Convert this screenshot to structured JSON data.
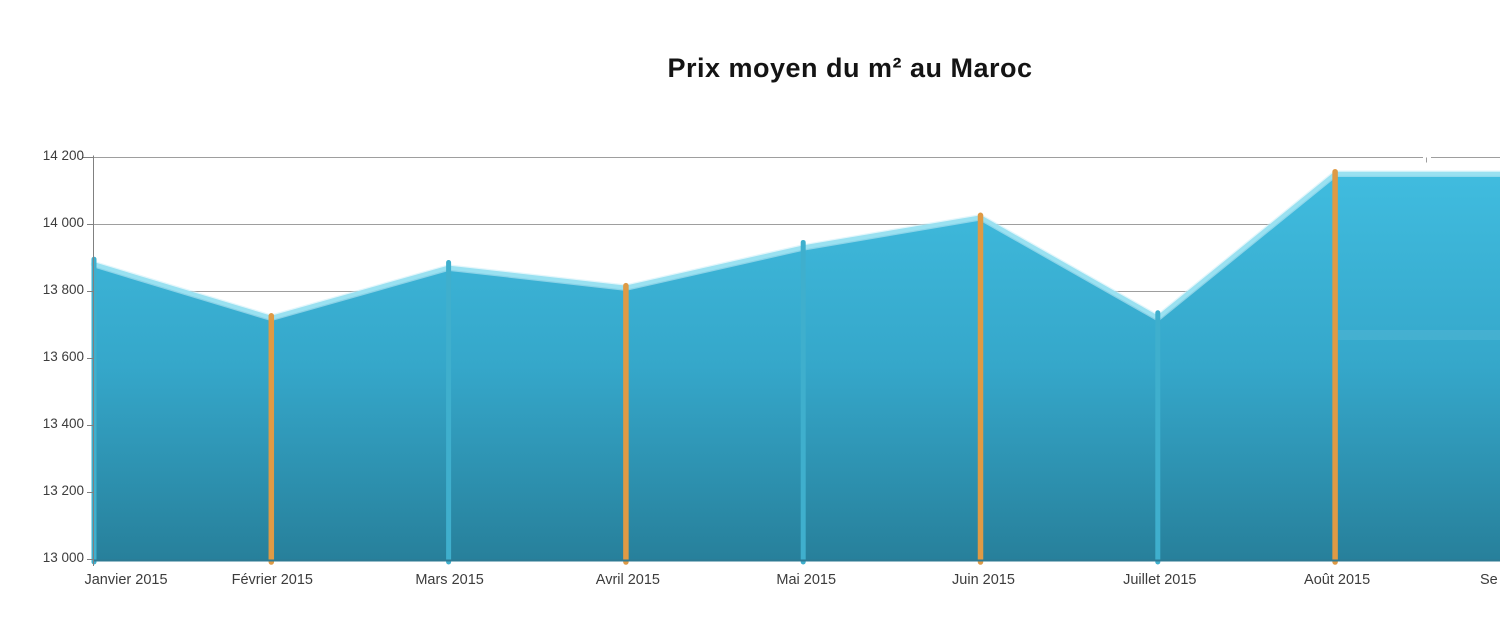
{
  "title": "Prix moyen du m² au Maroc",
  "chart_data": {
    "type": "area",
    "title": "Prix moyen du m² au Maroc",
    "categories": [
      "Janvier 2015",
      "Février 2015",
      "Mars 2015",
      "Avril 2015",
      "Mai 2015",
      "Juin 2015",
      "Juillet 2015",
      "Août 2015",
      "Se"
    ],
    "values": [
      13880,
      13720,
      13870,
      13810,
      13930,
      14020,
      13720,
      14150,
      14150
    ],
    "xlabel": "",
    "ylabel": "",
    "ylim": [
      13000,
      14200
    ],
    "ytick_step": 200,
    "ytick_labels": [
      "14 200",
      "14 000",
      "13 800",
      "13 600",
      "13 400",
      "13 200",
      "13 000"
    ],
    "grid": true,
    "legend": "none",
    "drop_line_pattern": [
      "cyan",
      "orange",
      "cyan",
      "orange",
      "cyan",
      "orange",
      "cyan",
      "orange"
    ],
    "colors": {
      "area_top": "#40bcdf",
      "area_mid": "#35a7ca",
      "area_bottom": "#27809b",
      "edge_highlight": "#9ae1f1",
      "edge_glow": "#cceff8",
      "drop_line_cyan": "#3fafcd",
      "drop_line_orange": "#df9a45",
      "gridline": "#9e9e9e",
      "axis": "#808080",
      "label": "#3c3c3c",
      "baseline": "#2d7a93",
      "title": "#141414"
    }
  }
}
